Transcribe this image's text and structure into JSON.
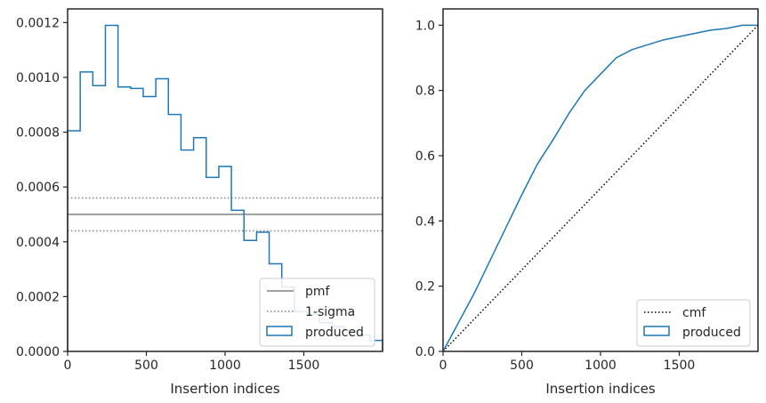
{
  "chart_data": [
    {
      "type": "histogram-step",
      "xlabel": "Insertion indices",
      "ylabel": "",
      "xlim": [
        0,
        2000
      ],
      "ylim": [
        0,
        0.00125
      ],
      "xticks": [
        0,
        500,
        1000,
        1500
      ],
      "xtick_labels": [
        "0",
        "500",
        "1000",
        "1500"
      ],
      "yticks": [
        0,
        0.0002,
        0.0004,
        0.0006,
        0.0008,
        0.001,
        0.0012
      ],
      "ytick_labels": [
        "0.0000",
        "0.0002",
        "0.0004",
        "0.0006",
        "0.0008",
        "0.0010",
        "0.0012"
      ],
      "legend_position": "lower-right",
      "bin_width": 80,
      "bin_edges_start": 0,
      "values": [
        0.000805,
        0.00102,
        0.00097,
        0.00119,
        0.000965,
        0.00096,
        0.00093,
        0.000995,
        0.000865,
        0.000735,
        0.00078,
        0.000635,
        0.000675,
        0.000515,
        0.000405,
        0.000435,
        0.00032,
        0.000235,
        0.000145,
        0.000135,
        0.000105,
        9e-05,
        7.5e-05,
        6e-05,
        4e-05
      ],
      "series": [
        {
          "name": "pmf",
          "kind": "hline",
          "y": 0.0005,
          "color": "#808080",
          "style": "solid"
        },
        {
          "name": "1-sigma",
          "kind": "hlines",
          "y": [
            0.00056,
            0.00044
          ],
          "color": "#808080",
          "style": "dotted"
        },
        {
          "name": "produced",
          "kind": "step",
          "color": "#1f77b4"
        }
      ]
    },
    {
      "type": "line",
      "xlabel": "Insertion indices",
      "ylabel": "",
      "xlim": [
        0,
        2000
      ],
      "ylim": [
        0,
        1.05
      ],
      "xticks": [
        0,
        500,
        1000,
        1500
      ],
      "xtick_labels": [
        "0",
        "500",
        "1000",
        "1500"
      ],
      "yticks": [
        0,
        0.2,
        0.4,
        0.6,
        0.8,
        1.0
      ],
      "ytick_labels": [
        "0.0",
        "0.2",
        "0.4",
        "0.6",
        "0.8",
        "1.0"
      ],
      "legend_position": "lower-right",
      "series": [
        {
          "name": "cmf",
          "color": "#000000",
          "style": "dotted",
          "x": [
            0,
            2000
          ],
          "y": [
            0,
            1.0
          ]
        },
        {
          "name": "produced",
          "color": "#1f77b4",
          "style": "solid",
          "x": [
            0,
            100,
            200,
            300,
            400,
            500,
            600,
            700,
            800,
            900,
            1000,
            1100,
            1200,
            1300,
            1400,
            1500,
            1600,
            1700,
            1800,
            1900,
            2000
          ],
          "y": [
            0,
            0.09,
            0.18,
            0.28,
            0.38,
            0.48,
            0.575,
            0.65,
            0.73,
            0.8,
            0.85,
            0.9,
            0.925,
            0.94,
            0.955,
            0.965,
            0.975,
            0.985,
            0.99,
            1.0,
            1.0
          ]
        }
      ]
    }
  ]
}
